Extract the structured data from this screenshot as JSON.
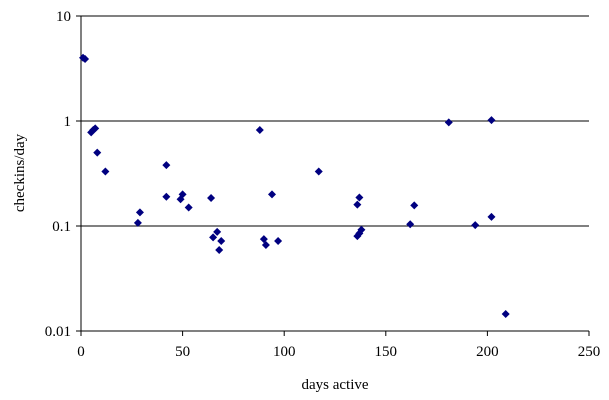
{
  "chart_data": {
    "type": "scatter",
    "title": "",
    "xlabel": "days active",
    "ylabel": "checkins/day",
    "xlim": [
      0,
      250
    ],
    "ylim": [
      0.01,
      10
    ],
    "y_scale": "log",
    "x_ticks": [
      "0",
      "50",
      "100",
      "150",
      "200",
      "250"
    ],
    "y_ticks": [
      "0.01",
      "0.1",
      "1",
      "10"
    ],
    "grid": "horizontal major gridlines",
    "legend": "none",
    "marker": "diamond",
    "marker_color": "#000080",
    "series": [
      {
        "points": [
          [
            1,
            4.0
          ],
          [
            2,
            3.9
          ],
          [
            5,
            0.78
          ],
          [
            6,
            0.82
          ],
          [
            7,
            0.85
          ],
          [
            8,
            0.5
          ],
          [
            12,
            0.33
          ],
          [
            28,
            0.107
          ],
          [
            29,
            0.135
          ],
          [
            42,
            0.38
          ],
          [
            42,
            0.19
          ],
          [
            49,
            0.18
          ],
          [
            50,
            0.2
          ],
          [
            53,
            0.15
          ],
          [
            64,
            0.185
          ],
          [
            65,
            0.078
          ],
          [
            67,
            0.088
          ],
          [
            68,
            0.059
          ],
          [
            69,
            0.072
          ],
          [
            88,
            0.82
          ],
          [
            90,
            0.075
          ],
          [
            91,
            0.066
          ],
          [
            94,
            0.2
          ],
          [
            97,
            0.072
          ],
          [
            117,
            0.33
          ],
          [
            136,
            0.16
          ],
          [
            137,
            0.187
          ],
          [
            136,
            0.08
          ],
          [
            137,
            0.085
          ],
          [
            138,
            0.092
          ],
          [
            162,
            0.104
          ],
          [
            164,
            0.157
          ],
          [
            181,
            0.97
          ],
          [
            194,
            0.102
          ],
          [
            202,
            1.02
          ],
          [
            202,
            0.122
          ],
          [
            209,
            0.0145
          ]
        ]
      }
    ]
  }
}
